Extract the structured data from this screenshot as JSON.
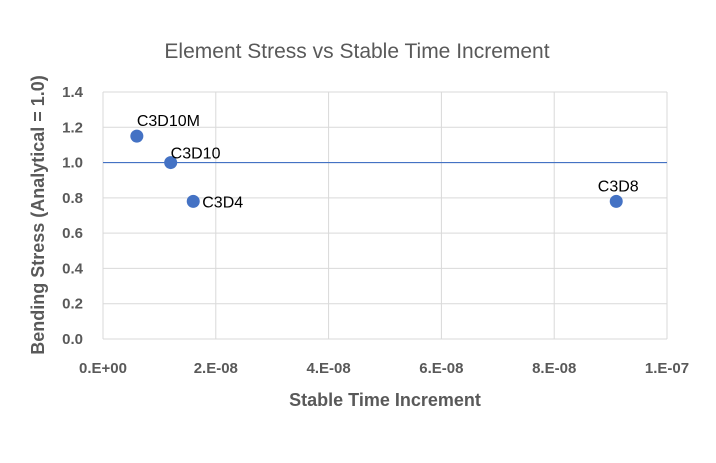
{
  "chart_data": {
    "type": "scatter",
    "title": "Element Stress vs Stable Time Increment",
    "xlabel": "Stable Time Increment",
    "ylabel": "Bending Stress (Analytical = 1.0)",
    "xlim": [
      0,
      1e-07
    ],
    "ylim": [
      0,
      1.4
    ],
    "x_ticks": [
      0,
      2e-08,
      4e-08,
      6e-08,
      8e-08,
      1e-07
    ],
    "x_tick_labels": [
      "0.E+00",
      "2.E-08",
      "4.E-08",
      "6.E-08",
      "8.E-08",
      "1.E-07"
    ],
    "y_ticks": [
      0,
      0.2,
      0.4,
      0.6,
      0.8,
      1.0,
      1.2,
      1.4
    ],
    "y_tick_labels": [
      "0.0",
      "0.2",
      "0.4",
      "0.6",
      "0.8",
      "1.0",
      "1.2",
      "1.4"
    ],
    "grid": true,
    "reference_line": {
      "y": 1.0,
      "color": "#4472C4"
    },
    "marker_color": "#4472C4",
    "points": [
      {
        "label": "C3D10M",
        "x": 6e-09,
        "y": 1.15
      },
      {
        "label": "C3D10",
        "x": 1.2e-08,
        "y": 1.0
      },
      {
        "label": "C3D4",
        "x": 1.6e-08,
        "y": 0.78
      },
      {
        "label": "C3D8",
        "x": 9.1e-08,
        "y": 0.78
      }
    ]
  }
}
